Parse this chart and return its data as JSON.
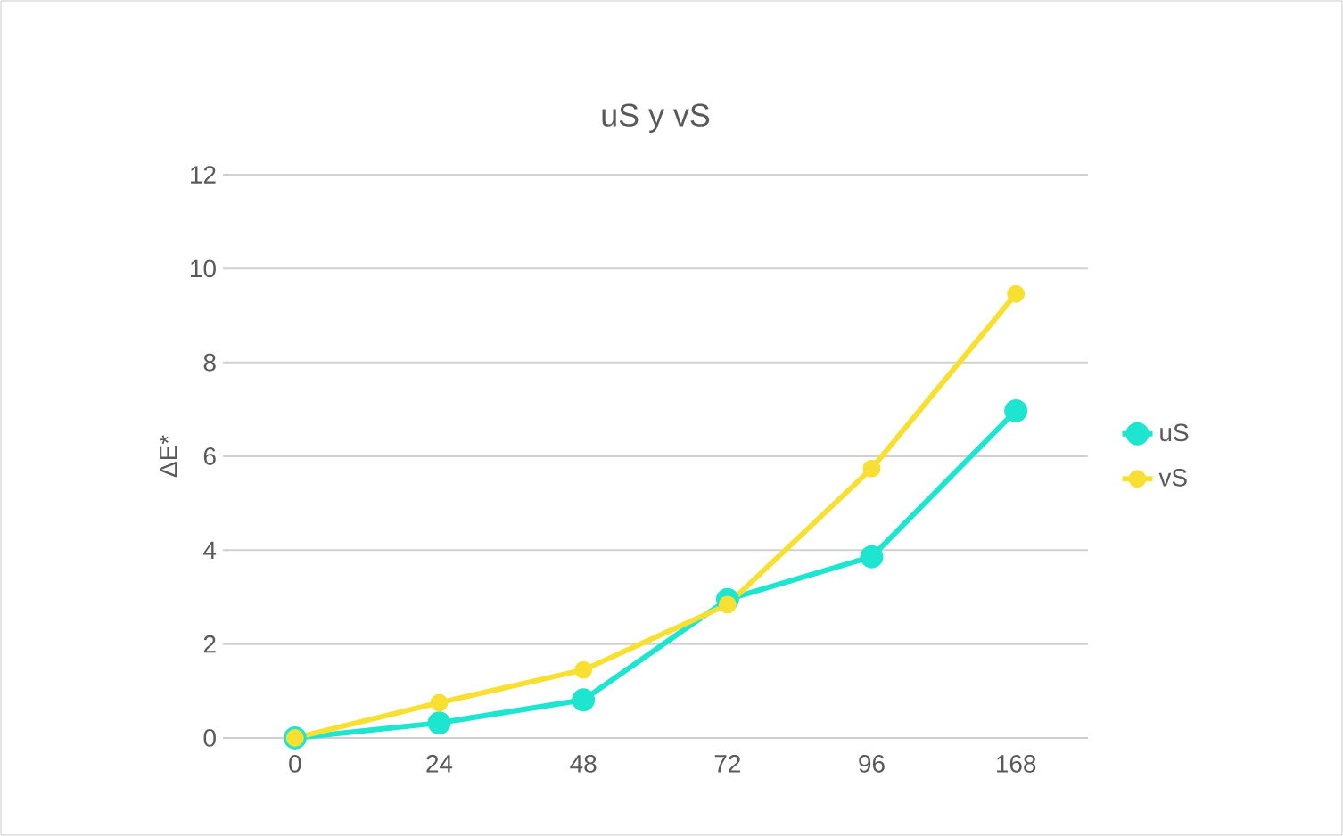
{
  "chart_data": {
    "type": "line",
    "title": "uS y vS",
    "ylabel": "ΔE*",
    "categories": [
      "0",
      "24",
      "48",
      "72",
      "96",
      "168"
    ],
    "series": [
      {
        "name": "uS",
        "color": "#1de5cf",
        "values": [
          0,
          0.32,
          0.81,
          2.95,
          3.86,
          6.97
        ]
      },
      {
        "name": "vS",
        "color": "#f7e031",
        "values": [
          0,
          0.75,
          1.45,
          2.84,
          5.74,
          9.46
        ]
      }
    ],
    "ylim": [
      0,
      12
    ],
    "yticks": [
      0,
      2,
      4,
      6,
      8,
      10,
      12
    ],
    "grid": "y",
    "legend": "right",
    "marker": "circle"
  }
}
